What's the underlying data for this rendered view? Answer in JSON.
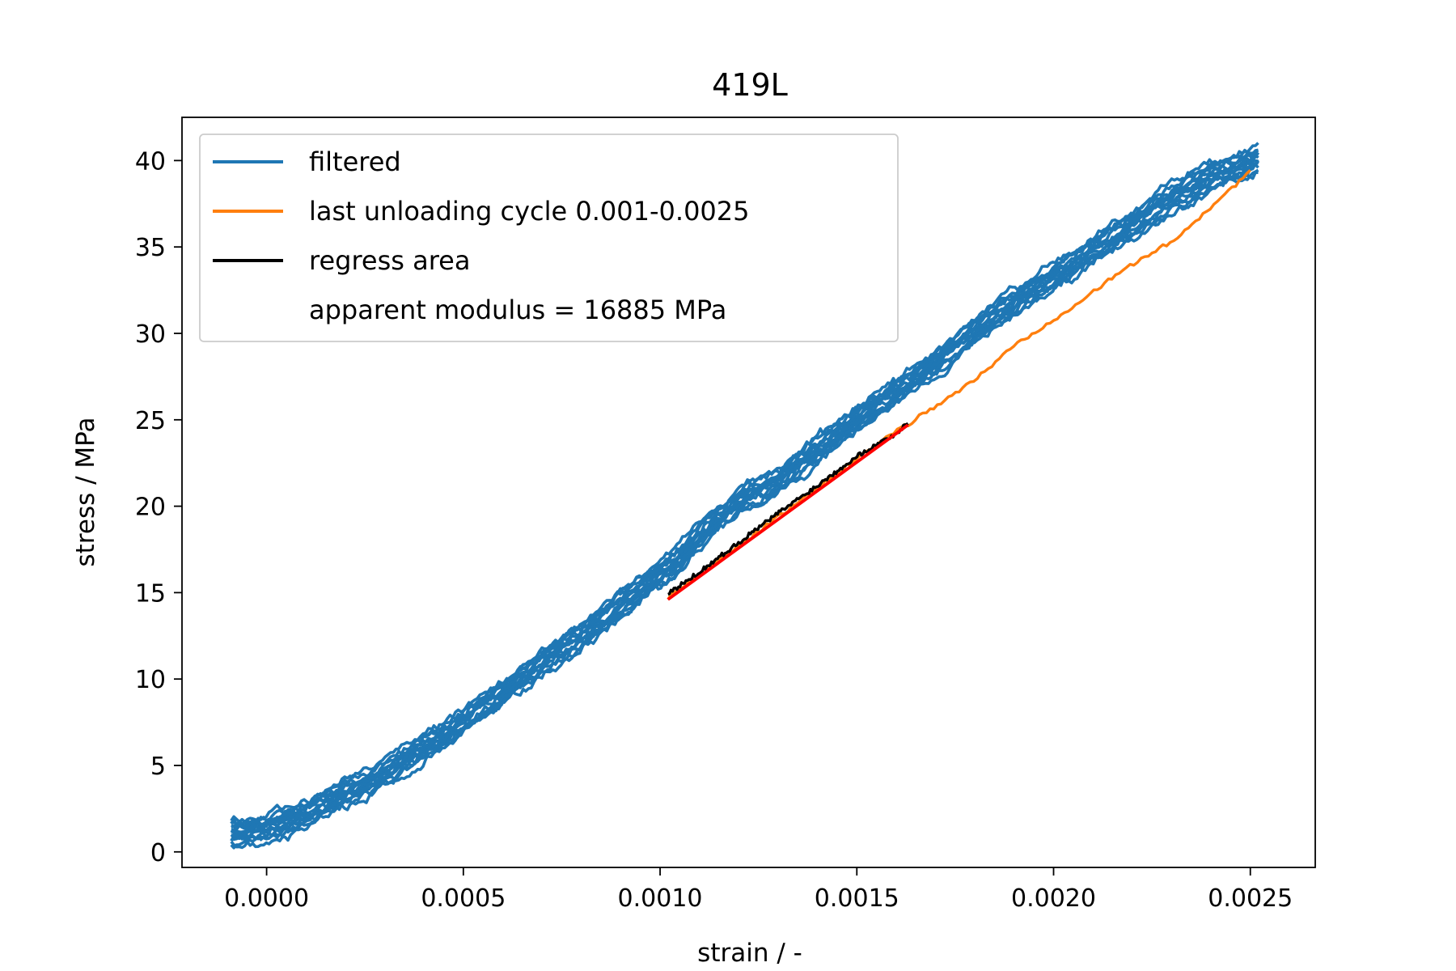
{
  "chart_data": {
    "type": "line",
    "title": "419L",
    "xlabel": "strain / -",
    "ylabel": "stress / MPa",
    "xlim": [
      -0.000215,
      0.002665
    ],
    "ylim": [
      -0.9,
      42.5
    ],
    "xticks": [
      0.0,
      0.0005,
      0.001,
      0.0015,
      0.002,
      0.0025
    ],
    "xtick_labels": [
      "0.0000",
      "0.0005",
      "0.0010",
      "0.0015",
      "0.0020",
      "0.0025"
    ],
    "yticks": [
      0,
      5,
      10,
      15,
      20,
      25,
      30,
      35,
      40
    ],
    "ytick_labels": [
      "0",
      "5",
      "10",
      "15",
      "20",
      "25",
      "30",
      "35",
      "40"
    ],
    "legend_position": "upper-left",
    "legend": [
      {
        "label": "filtered",
        "color": "#1f77b4",
        "has_line": true
      },
      {
        "label": "last unloading cycle 0.001-0.0025",
        "color": "#ff7f0e",
        "has_line": true
      },
      {
        "label": "regress area",
        "color": "#000000",
        "has_line": true
      },
      {
        "label": "apparent modulus = 16885 MPa",
        "color": "",
        "has_line": false
      }
    ],
    "series": [
      {
        "name": "filtered",
        "color": "#1f77b4",
        "band_width_mpa": 1.4,
        "passes": 14,
        "x": [
          -9e-05,
          0.0,
          0.0001,
          0.0002,
          0.0003,
          0.0004,
          0.0005,
          0.0006,
          0.0007,
          0.0008,
          0.0009,
          0.001,
          0.00105,
          0.0011,
          0.0012,
          0.0013,
          0.0014,
          0.0015,
          0.0016,
          0.0017,
          0.0018,
          0.0019,
          0.002,
          0.0021,
          0.0022,
          0.0023,
          0.0024,
          0.00252
        ],
        "y": [
          1.2,
          1.3,
          2.2,
          3.3,
          4.6,
          6.0,
          7.5,
          9.2,
          11.0,
          12.6,
          14.3,
          16.0,
          16.9,
          18.2,
          20.2,
          21.5,
          23.2,
          25.0,
          26.6,
          28.3,
          30.2,
          31.8,
          33.3,
          34.8,
          36.3,
          37.8,
          39.0,
          40.1
        ]
      },
      {
        "name": "last unloading cycle 0.001-0.0025",
        "color": "#ff7f0e",
        "x": [
          0.00102,
          0.0011,
          0.0012,
          0.0013,
          0.0014,
          0.0015,
          0.0016,
          0.0017,
          0.0018,
          0.0019,
          0.002,
          0.0021,
          0.0022,
          0.0023,
          0.0024,
          0.0025
        ],
        "y": [
          14.7,
          16.0,
          17.7,
          19.4,
          21.0,
          22.8,
          24.3,
          25.8,
          27.3,
          29.3,
          30.8,
          32.4,
          34.0,
          35.3,
          37.3,
          39.4
        ]
      },
      {
        "name": "regress area",
        "color": "#000000",
        "x": [
          0.00102,
          0.0011,
          0.0012,
          0.0013,
          0.0014,
          0.0015,
          0.0016,
          0.00163
        ],
        "y": [
          14.9,
          16.2,
          17.9,
          19.6,
          21.2,
          22.9,
          24.2,
          24.8
        ]
      },
      {
        "name": "",
        "color": "#ff0000",
        "x": [
          0.00102,
          0.00163
        ],
        "y": [
          14.6,
          24.7
        ]
      }
    ]
  }
}
